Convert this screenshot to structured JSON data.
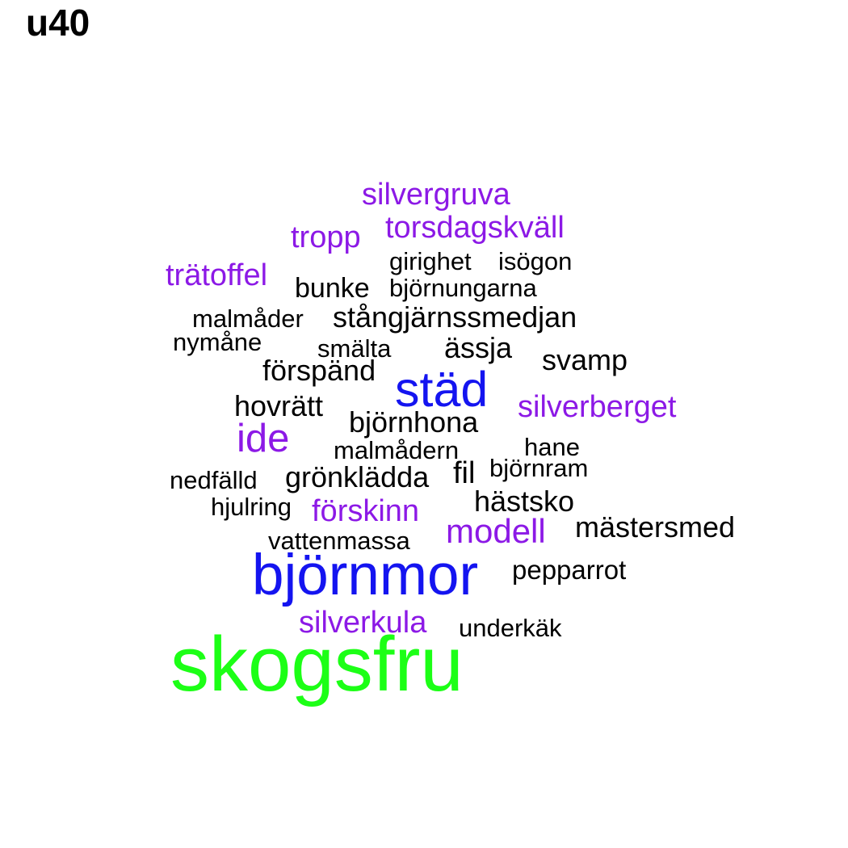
{
  "title": "u40",
  "colors": {
    "green": "#1cff16",
    "blue": "#1414f0",
    "purple": "#8c19e6",
    "black": "#000000"
  },
  "words": [
    {
      "text": "skogsfru",
      "color": "green"
    },
    {
      "text": "björnmor",
      "color": "blue"
    },
    {
      "text": "städ",
      "color": "blue"
    },
    {
      "text": "ide",
      "color": "purple"
    },
    {
      "text": "modell",
      "color": "purple"
    },
    {
      "text": "silvergruva",
      "color": "purple"
    },
    {
      "text": "torsdagskväll",
      "color": "purple"
    },
    {
      "text": "tropp",
      "color": "purple"
    },
    {
      "text": "trätoffel",
      "color": "purple"
    },
    {
      "text": "silverberget",
      "color": "purple"
    },
    {
      "text": "förskinn",
      "color": "purple"
    },
    {
      "text": "silverkula",
      "color": "purple"
    },
    {
      "text": "girighet",
      "color": "black"
    },
    {
      "text": "isögon",
      "color": "black"
    },
    {
      "text": "bunke",
      "color": "black"
    },
    {
      "text": "björnungarna",
      "color": "black"
    },
    {
      "text": "malmåder",
      "color": "black"
    },
    {
      "text": "stångjärnssmedjan",
      "color": "black"
    },
    {
      "text": "nymåne",
      "color": "black"
    },
    {
      "text": "smälta",
      "color": "black"
    },
    {
      "text": "ässja",
      "color": "black"
    },
    {
      "text": "svamp",
      "color": "black"
    },
    {
      "text": "förspänd",
      "color": "black"
    },
    {
      "text": "hovrätt",
      "color": "black"
    },
    {
      "text": "björnhona",
      "color": "black"
    },
    {
      "text": "malmådern",
      "color": "black"
    },
    {
      "text": "hane",
      "color": "black"
    },
    {
      "text": "björnram",
      "color": "black"
    },
    {
      "text": "nedfälld",
      "color": "black"
    },
    {
      "text": "grönklädda",
      "color": "black"
    },
    {
      "text": "fil",
      "color": "black"
    },
    {
      "text": "hjulring",
      "color": "black"
    },
    {
      "text": "hästsko",
      "color": "black"
    },
    {
      "text": "mästersmed",
      "color": "black"
    },
    {
      "text": "vattenmassa",
      "color": "black"
    },
    {
      "text": "pepparrot",
      "color": "black"
    },
    {
      "text": "underkäk",
      "color": "black"
    }
  ]
}
